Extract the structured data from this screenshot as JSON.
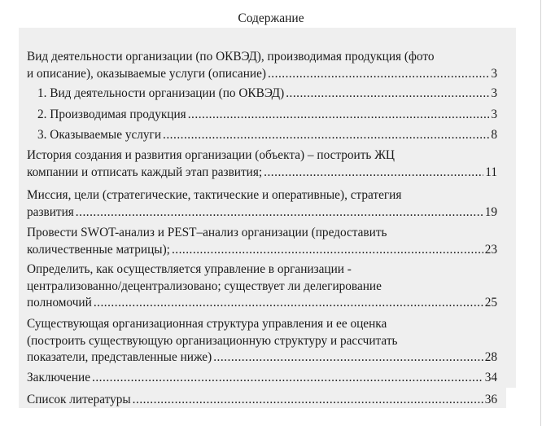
{
  "title": "Содержание",
  "entries": [
    {
      "lines": [
        "Вид деятельности организации (по ОКВЭД), производимая продукция (фото"
      ],
      "last": "и описание), оказываемые услуги (описание)",
      "page": "3"
    },
    {
      "lines": [],
      "last": "1. Вид деятельности организации (по ОКВЭД)",
      "page": "3",
      "sub": true
    },
    {
      "lines": [],
      "last": "2. Производимая продукция",
      "page": "3",
      "sub": true
    },
    {
      "lines": [],
      "last": "3. Оказываемые услуги",
      "page": "8",
      "sub": true
    },
    {
      "lines": [
        "История создания и развития организации (объекта) – построить ЖЦ"
      ],
      "last": "компании и отписать каждый этап развития;",
      "page": "11"
    },
    {
      "lines": [
        "Миссия, цели (стратегические, тактические и оперативные), стратегия"
      ],
      "last": "развития",
      "page": "19"
    },
    {
      "lines": [
        "Провести SWOT-анализ и PEST–анализ организации (предоставить"
      ],
      "last": "количественные матрицы);",
      "page": "23"
    },
    {
      "lines": [
        "Определить, как осуществляется управление в организации -",
        "централизованно/децентрализовано; существует ли делегирование"
      ],
      "last": "полномочий",
      "page": "25"
    },
    {
      "lines": [
        "Существующая организационная структура управления и ее оценка",
        "(построить существующую организационную структуру и рассчитать"
      ],
      "last": "показатели, представленные ниже)",
      "page": "28"
    },
    {
      "lines": [],
      "last": "Заключение",
      "page": "34"
    },
    {
      "lines": [],
      "last": "Список литературы",
      "page": "36"
    }
  ]
}
